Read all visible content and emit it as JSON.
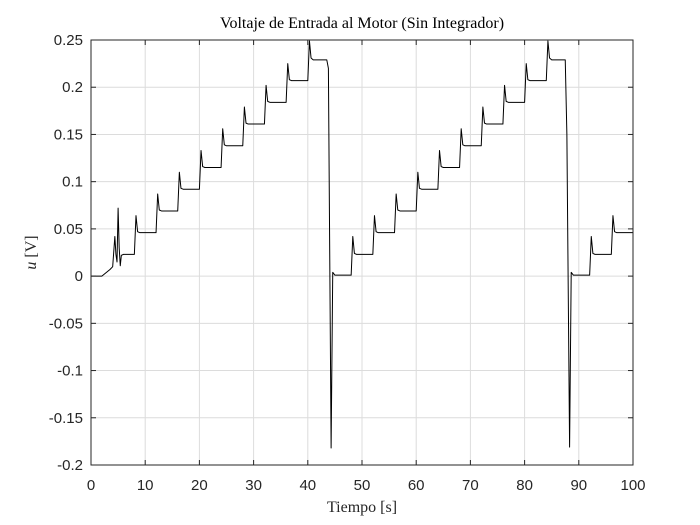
{
  "chart_data": {
    "type": "line",
    "title": "Voltaje de Entrada al Motor (Sin Integrador)",
    "xlabel": "Tiempo [s]",
    "ylabel_var": "u",
    "ylabel_unit": " [V]",
    "xlim": [
      0,
      100
    ],
    "ylim": [
      -0.2,
      0.25
    ],
    "x_ticks": [
      0,
      10,
      20,
      30,
      40,
      50,
      60,
      70,
      80,
      90,
      100
    ],
    "x_tick_labels": [
      "0",
      "10",
      "20",
      "30",
      "40",
      "50",
      "60",
      "70",
      "80",
      "90",
      "100"
    ],
    "y_ticks": [
      -0.2,
      -0.15,
      -0.1,
      -0.05,
      0,
      0.05,
      0.1,
      0.15,
      0.2,
      0.25
    ],
    "y_tick_labels": [
      "-0.2",
      "-0.15",
      "-0.1",
      "-0.05",
      "0",
      "0.05",
      "0.1",
      "0.15",
      "0.2",
      "0.25"
    ],
    "grid": true,
    "line_color": "#000000",
    "series": [
      {
        "x": [
          0,
          2.0,
          3.5,
          4.0,
          4.4,
          4.6,
          4.8,
          5.0,
          5.2,
          5.4,
          5.6,
          6.0,
          8.0,
          8.3,
          8.6,
          9.0,
          12.0,
          12.3,
          12.6,
          13.0,
          16.0,
          16.3,
          16.6,
          17.0,
          20.0,
          20.3,
          20.6,
          21.0,
          24.0,
          24.3,
          24.6,
          25.0,
          28.0,
          28.3,
          28.6,
          29.0,
          32.0,
          32.3,
          32.6,
          33.0,
          36.0,
          36.3,
          36.6,
          37.0,
          40.0,
          40.3,
          40.6,
          41.0,
          43.5,
          43.8,
          44.3,
          44.6,
          45.0,
          48.0,
          48.3,
          48.6,
          49.0,
          52.0,
          52.3,
          52.6,
          53.0,
          56.0,
          56.3,
          56.6,
          57.0,
          60.0,
          60.3,
          60.6,
          61.0,
          64.0,
          64.3,
          64.6,
          65.0,
          68.0,
          68.3,
          68.6,
          69.0,
          72.0,
          72.3,
          72.6,
          73.0,
          76.0,
          76.3,
          76.6,
          77.0,
          80.0,
          80.3,
          80.6,
          81.0,
          84.0,
          84.3,
          84.6,
          85.0,
          87.5,
          87.8,
          88.3,
          88.6,
          89.0,
          92.0,
          92.3,
          92.6,
          93.0,
          96.0,
          96.3,
          96.6,
          97.0,
          100.0
        ],
        "y": [
          0.0,
          0.0,
          0.007,
          0.01,
          0.042,
          0.023,
          0.015,
          0.072,
          0.03,
          0.011,
          0.022,
          0.023,
          0.023,
          0.064,
          0.047,
          0.046,
          0.046,
          0.087,
          0.07,
          0.069,
          0.069,
          0.11,
          0.093,
          0.092,
          0.092,
          0.133,
          0.116,
          0.115,
          0.115,
          0.156,
          0.139,
          0.138,
          0.138,
          0.179,
          0.162,
          0.161,
          0.161,
          0.202,
          0.185,
          0.184,
          0.184,
          0.225,
          0.208,
          0.207,
          0.207,
          0.249,
          0.231,
          0.229,
          0.229,
          0.22,
          -0.182,
          0.004,
          0.001,
          0.001,
          0.042,
          0.024,
          0.023,
          0.023,
          0.064,
          0.047,
          0.046,
          0.046,
          0.087,
          0.07,
          0.069,
          0.069,
          0.11,
          0.093,
          0.092,
          0.092,
          0.133,
          0.116,
          0.115,
          0.115,
          0.156,
          0.139,
          0.138,
          0.138,
          0.179,
          0.162,
          0.161,
          0.161,
          0.202,
          0.185,
          0.184,
          0.184,
          0.225,
          0.208,
          0.207,
          0.207,
          0.249,
          0.231,
          0.229,
          0.229,
          0.15,
          -0.181,
          0.004,
          0.001,
          0.001,
          0.042,
          0.024,
          0.023,
          0.023,
          0.064,
          0.047,
          0.046,
          0.046
        ]
      }
    ]
  }
}
